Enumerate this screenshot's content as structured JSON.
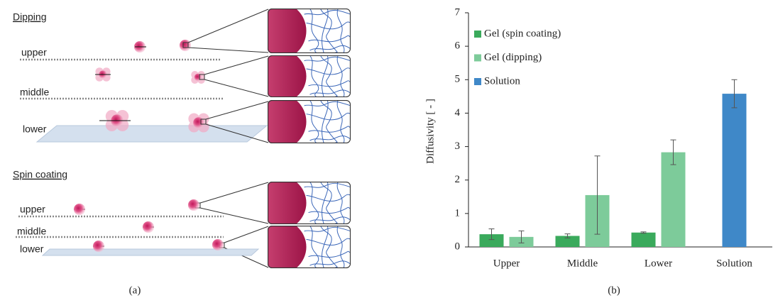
{
  "diagram": {
    "sections": [
      {
        "title": "Dipping",
        "levels": [
          "upper",
          "middle",
          "lower"
        ]
      },
      {
        "title": "Spin coating",
        "levels": [
          "upper",
          "middle",
          "lower"
        ]
      }
    ],
    "caption": "(a)"
  },
  "chart_data": {
    "type": "bar",
    "caption": "(b)",
    "y_label": "Diffusivity [ - ]",
    "categories": [
      "Upper",
      "Middle",
      "Lower",
      "Solution"
    ],
    "series": [
      {
        "name": "Gel (spin coating)",
        "color": "#3aaa5c",
        "values": [
          0.38,
          0.33,
          0.43,
          null
        ],
        "errors": [
          0.16,
          0.06,
          0.02,
          null
        ]
      },
      {
        "name": "Gel (dipping)",
        "color": "#7dcb9a",
        "values": [
          0.3,
          1.55,
          2.83,
          null
        ],
        "errors": [
          0.18,
          1.17,
          0.37,
          null
        ]
      },
      {
        "name": "Solution",
        "color": "#3f88c8",
        "values": [
          null,
          null,
          null,
          4.58
        ],
        "errors": [
          null,
          null,
          null,
          0.42
        ]
      }
    ],
    "ylim": [
      0,
      7
    ],
    "yticks": [
      0,
      1,
      2,
      3,
      4,
      5,
      6,
      7
    ],
    "grid": false,
    "legend": "upper-left"
  }
}
